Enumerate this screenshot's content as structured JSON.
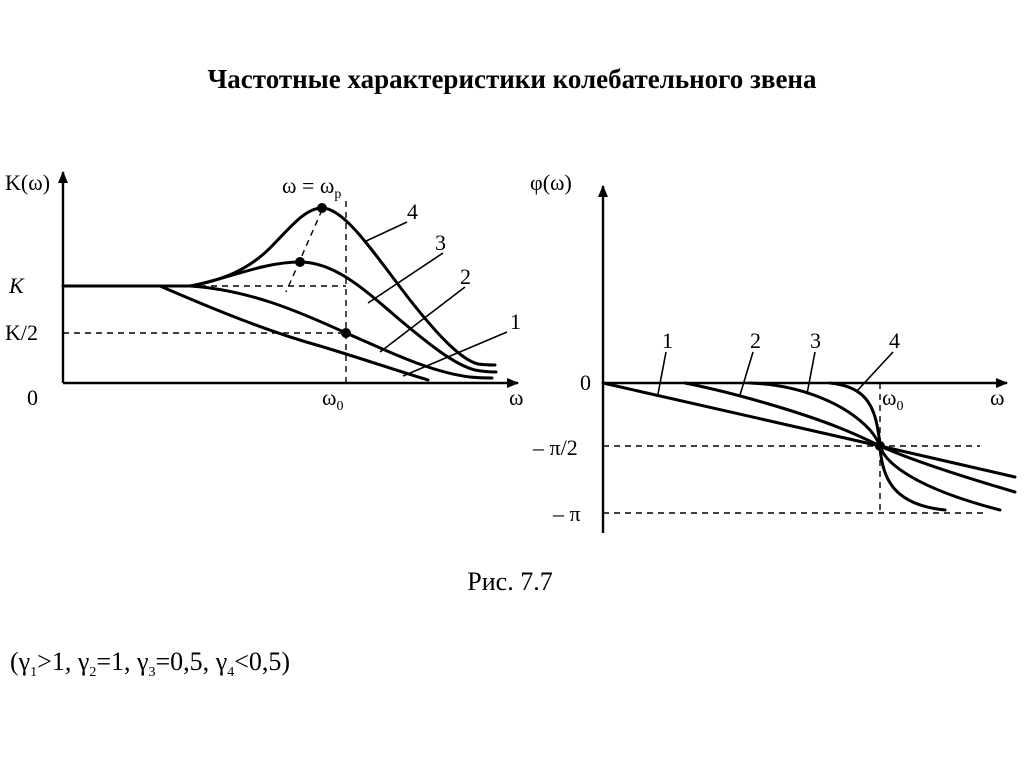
{
  "title": "Частотные характеристики колебательного звена",
  "caption": "Рис. 7.7",
  "gamma_note": {
    "gamma1": "γ",
    "sub1": "1",
    "cond1": ">1, ",
    "gamma2": "γ",
    "sub2": "2",
    "cond2": "=1, ",
    "gamma3": "γ",
    "sub3": "3",
    "cond3": "=0,5, ",
    "gamma4": "γ",
    "sub4": "4",
    "cond4": "<0,5)",
    "open": "("
  },
  "chart_data": [
    {
      "type": "line",
      "ylabel": "K(ω)",
      "xlabel": "ω",
      "origin_label": "0",
      "y_ticks": {
        "k": "K",
        "k_half": "K/2"
      },
      "x_tick": {
        "base": "ω",
        "sub": "0"
      },
      "peak_label": {
        "main": "ω = ω",
        "sub": "p"
      },
      "series": [
        {
          "name": "1",
          "label": "1"
        },
        {
          "name": "2",
          "label": "2"
        },
        {
          "name": "3",
          "label": "3"
        },
        {
          "name": "4",
          "label": "4"
        }
      ]
    },
    {
      "type": "line",
      "ylabel": "φ(ω)",
      "xlabel": "ω",
      "origin_label": "0",
      "y_ticks": {
        "minus_half_pi": "– π/2",
        "minus_pi": "– π"
      },
      "x_tick": {
        "base": "ω",
        "sub": "0"
      },
      "series": [
        {
          "name": "1",
          "label": "1"
        },
        {
          "name": "2",
          "label": "2"
        },
        {
          "name": "3",
          "label": "3"
        },
        {
          "name": "4",
          "label": "4"
        }
      ]
    }
  ]
}
